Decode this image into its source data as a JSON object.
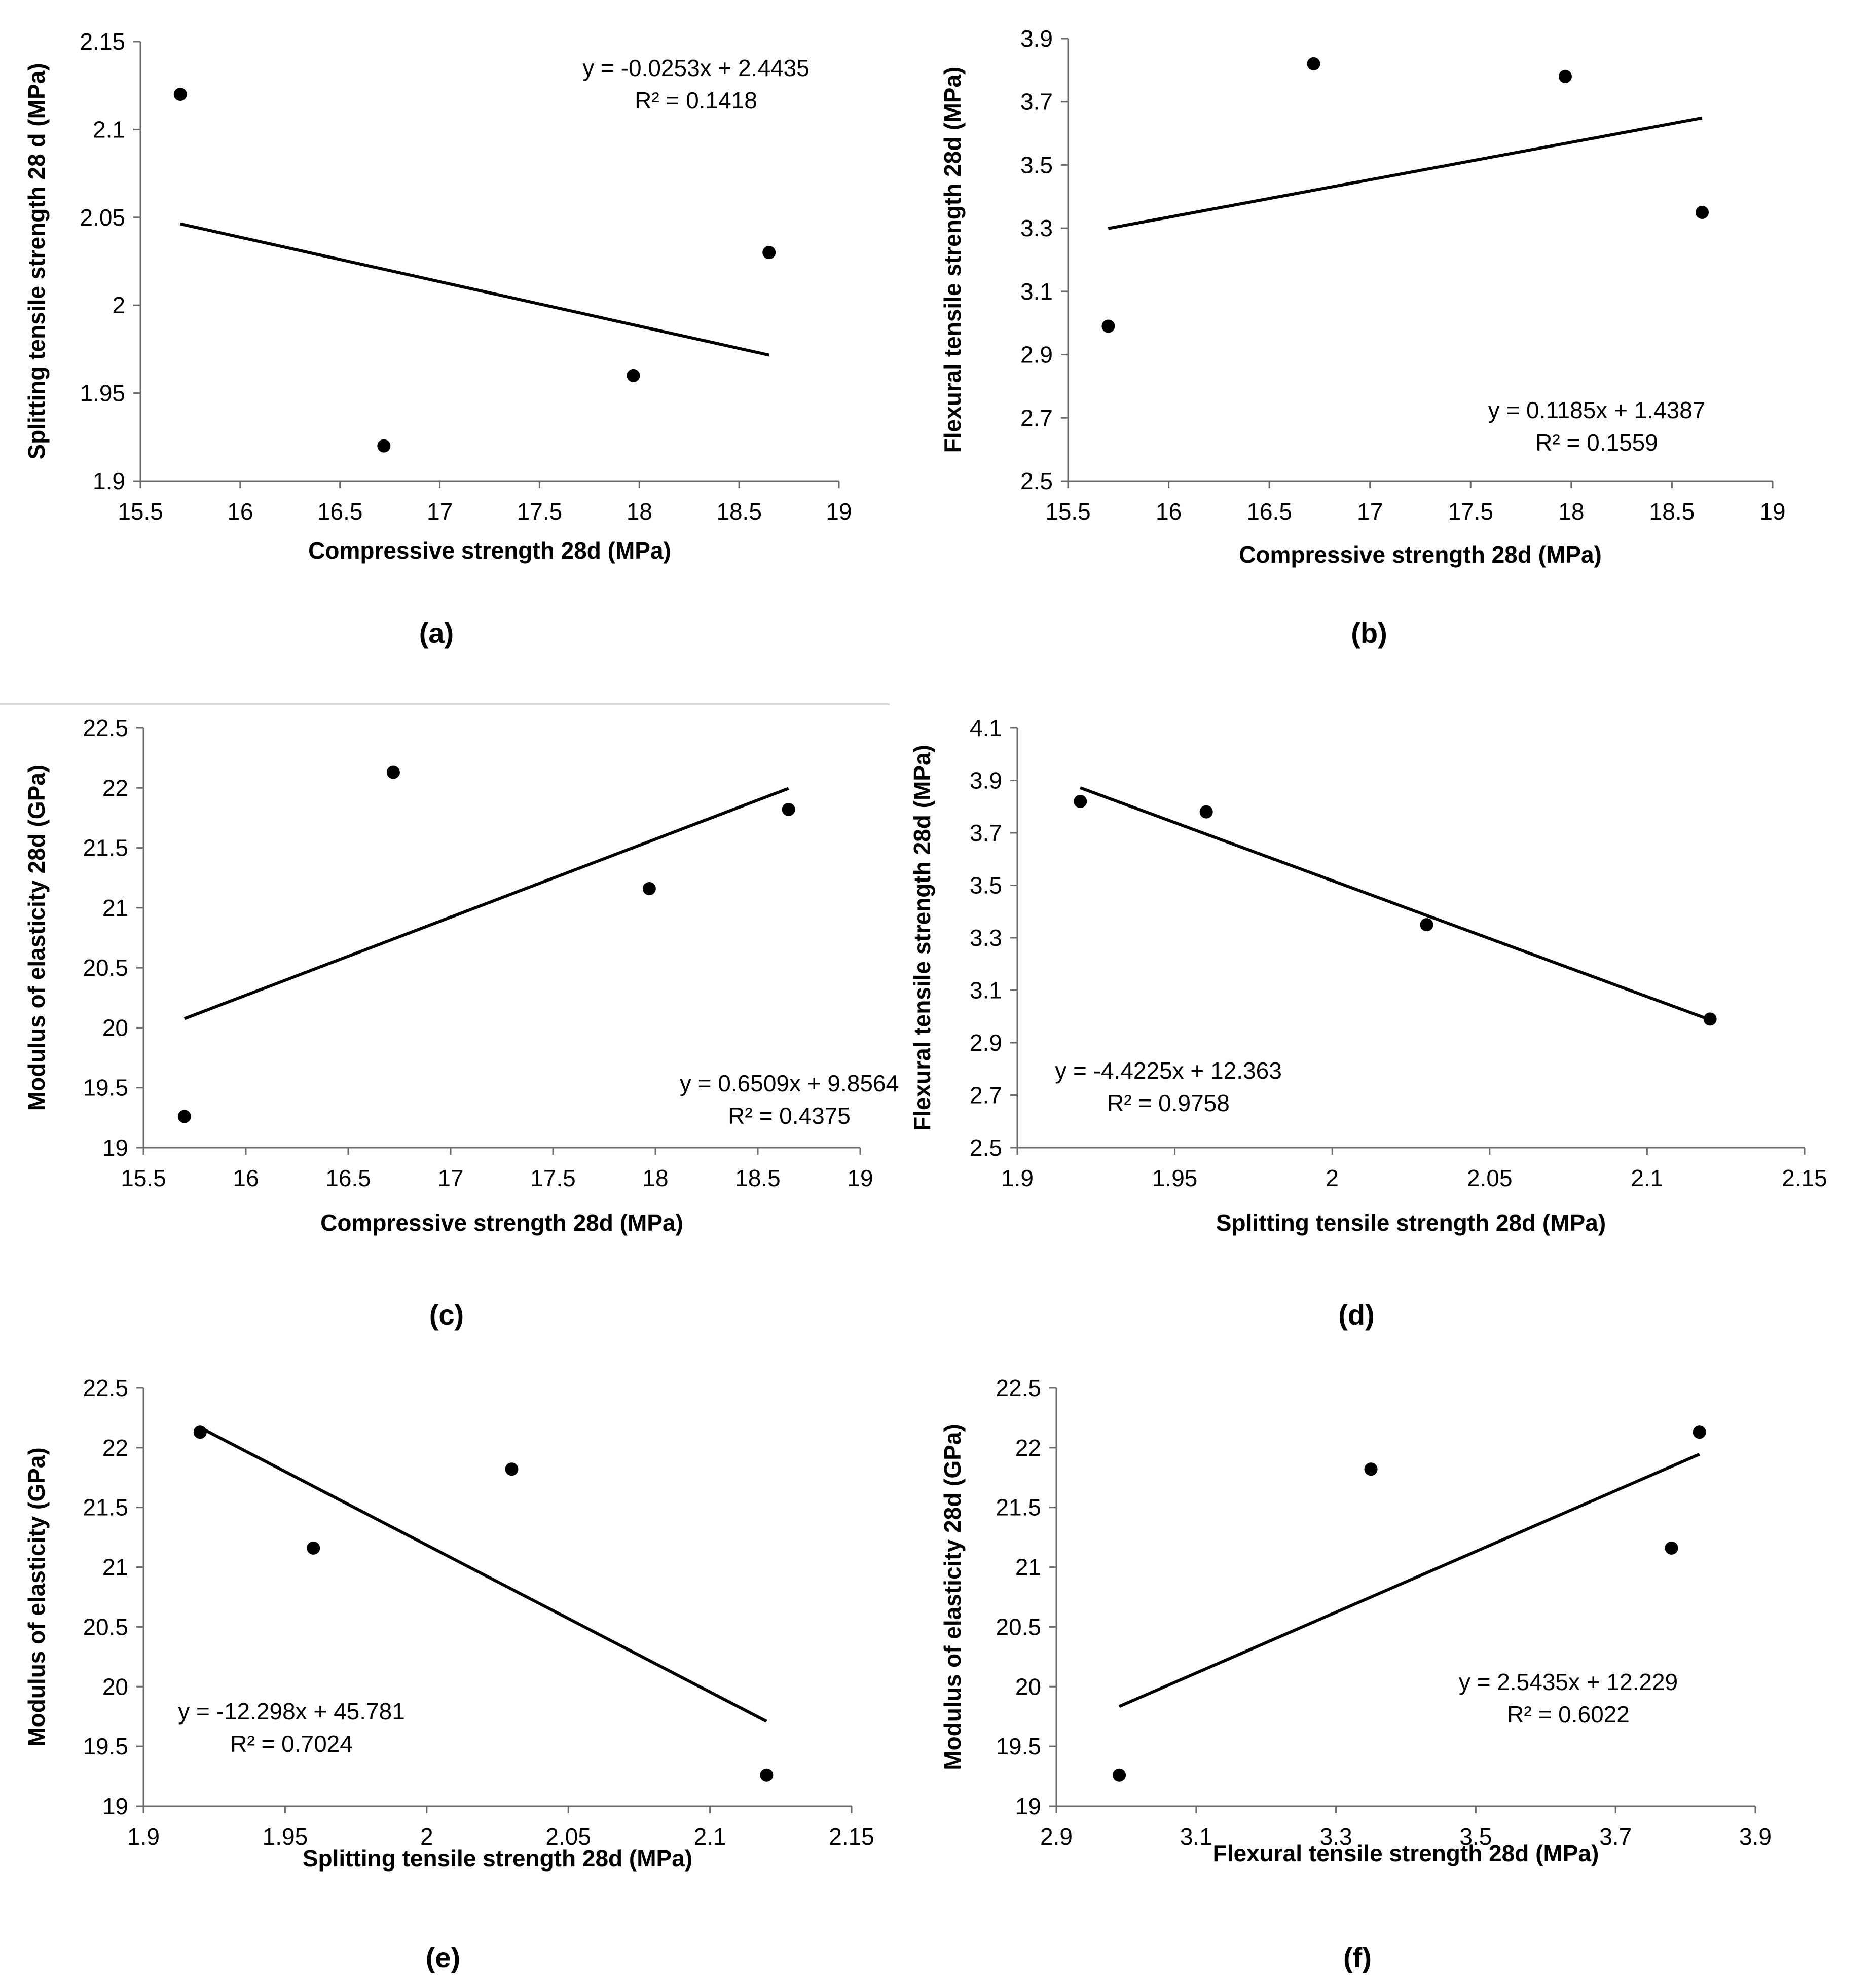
{
  "chart_data": [
    {
      "type": "scatter",
      "panel_label": "(a)",
      "xlabel": "Compressive strength 28d (MPa)",
      "ylabel": "Splitting tensile strength 28 d (MPa)",
      "xlim": [
        15.5,
        19
      ],
      "ylim": [
        1.9,
        2.15
      ],
      "xticks": [
        "15.5",
        "16",
        "16.5",
        "17",
        "17.5",
        "18",
        "18.5",
        "19"
      ],
      "yticks": [
        "1.9",
        "1.95",
        "2",
        "2.05",
        "2.1",
        "2.15"
      ],
      "points": [
        [
          15.7,
          2.12
        ],
        [
          16.72,
          1.92
        ],
        [
          17.97,
          1.96
        ],
        [
          18.65,
          2.03
        ]
      ],
      "trendline": {
        "slope": -0.0253,
        "intercept": 2.4435,
        "x_from": 15.7,
        "x_to": 18.65
      },
      "equation": "y = -0.0253x + 2.4435",
      "r2": "R² = 0.1418",
      "grid": false
    },
    {
      "type": "scatter",
      "panel_label": "(b)",
      "xlabel": "Compressive strength 28d (MPa)",
      "ylabel": "Flexural tensile strength 28d (MPa)",
      "xlim": [
        15.5,
        19
      ],
      "ylim": [
        2.5,
        3.9
      ],
      "xticks": [
        "15.5",
        "16",
        "16.5",
        "17",
        "17.5",
        "18",
        "18.5",
        "19"
      ],
      "yticks": [
        "2.5",
        "2.7",
        "2.9",
        "3.1",
        "3.3",
        "3.5",
        "3.7",
        "3.9"
      ],
      "points": [
        [
          15.7,
          2.99
        ],
        [
          16.72,
          3.82
        ],
        [
          17.97,
          3.78
        ],
        [
          18.65,
          3.35
        ]
      ],
      "trendline": {
        "slope": 0.1185,
        "intercept": 1.4387,
        "x_from": 15.7,
        "x_to": 18.65
      },
      "equation": "y = 0.1185x + 1.4387",
      "r2": "R² = 0.1559",
      "grid": false
    },
    {
      "type": "scatter",
      "panel_label": "(c)",
      "xlabel": "Compressive strength 28d (MPa)",
      "ylabel": "Modulus of elasticity 28d (GPa)",
      "xlim": [
        15.5,
        19
      ],
      "ylim": [
        19,
        22.5
      ],
      "xticks": [
        "15.5",
        "16",
        "16.5",
        "17",
        "17.5",
        "18",
        "18.5",
        "19"
      ],
      "yticks": [
        "19",
        "19.5",
        "20",
        "20.5",
        "21",
        "21.5",
        "22",
        "22.5"
      ],
      "points": [
        [
          15.7,
          19.26
        ],
        [
          16.72,
          22.13
        ],
        [
          17.97,
          21.16
        ],
        [
          18.65,
          21.82
        ]
      ],
      "trendline": {
        "slope": 0.6509,
        "intercept": 9.8564,
        "x_from": 15.7,
        "x_to": 18.65
      },
      "equation": "y = 0.6509x + 9.8564",
      "r2": "R² = 0.4375",
      "grid": false
    },
    {
      "type": "scatter",
      "panel_label": "(d)",
      "xlabel": "Splitting tensile strength 28d (MPa)",
      "ylabel": "Flexural tensile strength 28d (MPa)",
      "xlim": [
        1.9,
        2.15
      ],
      "ylim": [
        2.5,
        4.1
      ],
      "xticks": [
        "1.9",
        "1.95",
        "2",
        "2.05",
        "2.1",
        "2.15"
      ],
      "yticks": [
        "2.5",
        "2.7",
        "2.9",
        "3.1",
        "3.3",
        "3.5",
        "3.7",
        "3.9",
        "4.1"
      ],
      "points": [
        [
          1.92,
          3.82
        ],
        [
          1.96,
          3.78
        ],
        [
          2.03,
          3.35
        ],
        [
          2.12,
          2.99
        ]
      ],
      "trendline": {
        "slope": -4.4225,
        "intercept": 12.363,
        "x_from": 1.92,
        "x_to": 2.12
      },
      "equation": "y = -4.4225x + 12.363",
      "r2": "R² = 0.9758",
      "grid": false
    },
    {
      "type": "scatter",
      "panel_label": "(e)",
      "xlabel": "Splitting tensile strength 28d (MPa)",
      "ylabel": "Modulus of elasticity (GPa)",
      "xlim": [
        1.9,
        2.15
      ],
      "ylim": [
        19,
        22.5
      ],
      "xticks": [
        "1.9",
        "1.95",
        "2",
        "2.05",
        "2.1",
        "2.15"
      ],
      "yticks": [
        "19",
        "19.5",
        "20",
        "20.5",
        "21",
        "21.5",
        "22",
        "22.5"
      ],
      "points": [
        [
          1.92,
          22.13
        ],
        [
          1.96,
          21.16
        ],
        [
          2.03,
          21.82
        ],
        [
          2.12,
          19.26
        ]
      ],
      "trendline": {
        "slope": -12.298,
        "intercept": 45.781,
        "x_from": 1.92,
        "x_to": 2.12
      },
      "equation": "y = -12.298x + 45.781",
      "r2": "R² = 0.7024",
      "grid": false
    },
    {
      "type": "scatter",
      "panel_label": "(f)",
      "xlabel": "Flexural tensile strength 28d (MPa)",
      "ylabel": "Modulus of elasticity 28d (GPa)",
      "xlim": [
        2.9,
        3.9
      ],
      "ylim": [
        19,
        22.5
      ],
      "xticks": [
        "2.9",
        "3.1",
        "3.3",
        "3.5",
        "3.7",
        "3.9"
      ],
      "yticks": [
        "19",
        "19.5",
        "20",
        "20.5",
        "21",
        "21.5",
        "22",
        "22.5"
      ],
      "points": [
        [
          2.99,
          19.26
        ],
        [
          3.35,
          21.82
        ],
        [
          3.78,
          21.16
        ],
        [
          3.82,
          22.13
        ]
      ],
      "trendline": {
        "slope": 2.5435,
        "intercept": 12.229,
        "x_from": 2.99,
        "x_to": 3.82
      },
      "equation": "y = 2.5435x + 12.229",
      "r2": "R² = 0.6022",
      "grid": false
    }
  ]
}
